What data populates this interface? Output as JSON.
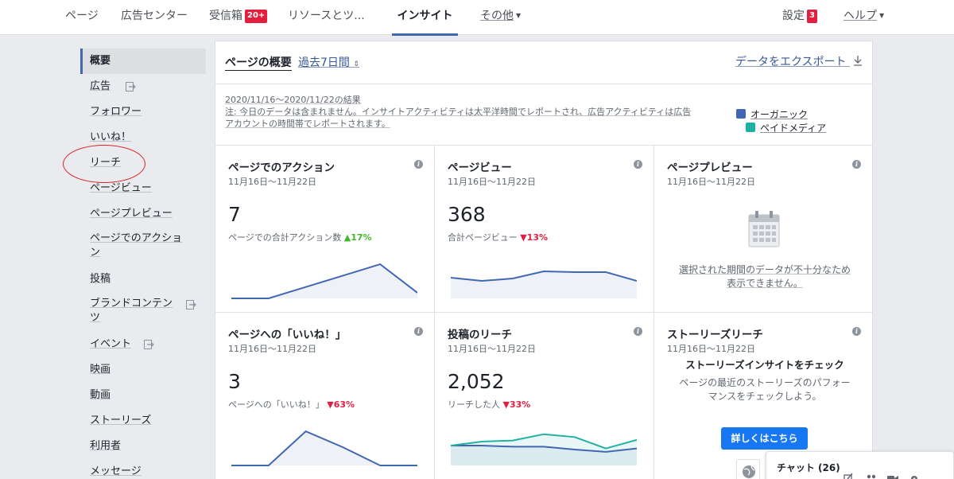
{
  "nav": {
    "items": [
      {
        "label": "ページ"
      },
      {
        "label": "広告センター"
      },
      {
        "label": "受信箱",
        "badge": "20+"
      },
      {
        "label": "リソースとツ..."
      },
      {
        "label": "インサイト",
        "active": true
      },
      {
        "label": "その他"
      }
    ],
    "settings": {
      "label": "設定",
      "badge": "3"
    },
    "help": {
      "label": "ヘルプ"
    }
  },
  "sidebar": {
    "items": [
      {
        "label": "概要"
      },
      {
        "label": "広告"
      },
      {
        "label": "フォロワー"
      },
      {
        "label": "いいね！"
      },
      {
        "label": "リーチ"
      },
      {
        "label": "ページビュー"
      },
      {
        "label": "ページプレビュー"
      },
      {
        "label": "ページでのアクショ",
        "label2": "ン"
      },
      {
        "label": "投稿"
      },
      {
        "label": "ブランドコンテン",
        "label2": "ツ"
      },
      {
        "label": "イベント"
      },
      {
        "label": "映画"
      },
      {
        "label": "動画"
      },
      {
        "label": "ストーリーズ"
      },
      {
        "label": "利用者"
      },
      {
        "label": "メッセージ"
      }
    ]
  },
  "overview": {
    "title": "ページの概要",
    "period": "過去7日間",
    "export": "データをエクスポート",
    "note_range": "2020/11/16〜2020/11/22の結果",
    "note_line1": "注: 今日のデータは含まれません。インサイトアクティビティは太平洋時間でレポートされ、広告アクティビティは広告",
    "note_line2": "アカウントの時間帯でレポートされます。",
    "legend": {
      "organic": "オーガニック",
      "paid": "ペイドメディア",
      "organic_color": "#4267b2",
      "paid_color": "#20b2a0"
    }
  },
  "cards": {
    "actions": {
      "title": "ページでのアクション",
      "date": "11月16日〜11月22日",
      "value": "7",
      "sub": "ページでの合計アクション数",
      "change": "17%",
      "direction": "up",
      "chart_data": {
        "type": "area",
        "series": [
          {
            "values": [
              0,
              0,
              2,
              4,
              6,
              1
            ]
          }
        ],
        "ylim": [
          0,
          7
        ]
      }
    },
    "views": {
      "title": "ページビュー",
      "date": "11月16日〜11月22日",
      "value": "368",
      "sub": "合計ページビュー",
      "change": "13%",
      "direction": "down",
      "chart_data": {
        "type": "area",
        "series": [
          {
            "values": [
              52,
              44,
              50,
              68,
              66,
              66,
              44
            ]
          }
        ],
        "ylim": [
          0,
          100
        ]
      }
    },
    "preview": {
      "title": "ページプレビュー",
      "date": "11月16日〜11月22日",
      "message1": "選択された期間のデータが不十分なため",
      "message2": "表示できません。"
    },
    "likes": {
      "title": "ページへの「いいね！」",
      "date": "11月16日〜11月22日",
      "value": "3",
      "sub": "ページへの「いいね！」",
      "change": "63%",
      "direction": "down",
      "chart_data": {
        "type": "area",
        "series": [
          {
            "values": [
              0,
              0,
              3,
              1.6,
              0,
              0
            ]
          }
        ],
        "ylim": [
          0,
          3.5
        ]
      }
    },
    "reach": {
      "title": "投稿のリーチ",
      "date": "11月16日〜11月22日",
      "value": "2,052",
      "sub": "リーチした人",
      "change": "33%",
      "direction": "down",
      "chart_data": {
        "type": "area",
        "series": [
          {
            "name": "オーガニック",
            "values": [
              35,
              35,
              33,
              33,
              28,
              24,
              30
            ]
          },
          {
            "name": "ペイドメディア",
            "values": [
              35,
              42,
              44,
              55,
              50,
              30,
              45
            ]
          }
        ],
        "ylim": [
          0,
          70
        ]
      }
    },
    "stories": {
      "title": "ストーリーズリーチ",
      "date": "11月16日〜11月22日",
      "heading": "ストーリーズインサイトをチェック",
      "body1": "ページの最近のストーリーズのパフォー",
      "body2": "マンスをチェックしよう。",
      "button": "詳しくはこちら"
    }
  },
  "chat": {
    "label": "チャット (26)"
  }
}
